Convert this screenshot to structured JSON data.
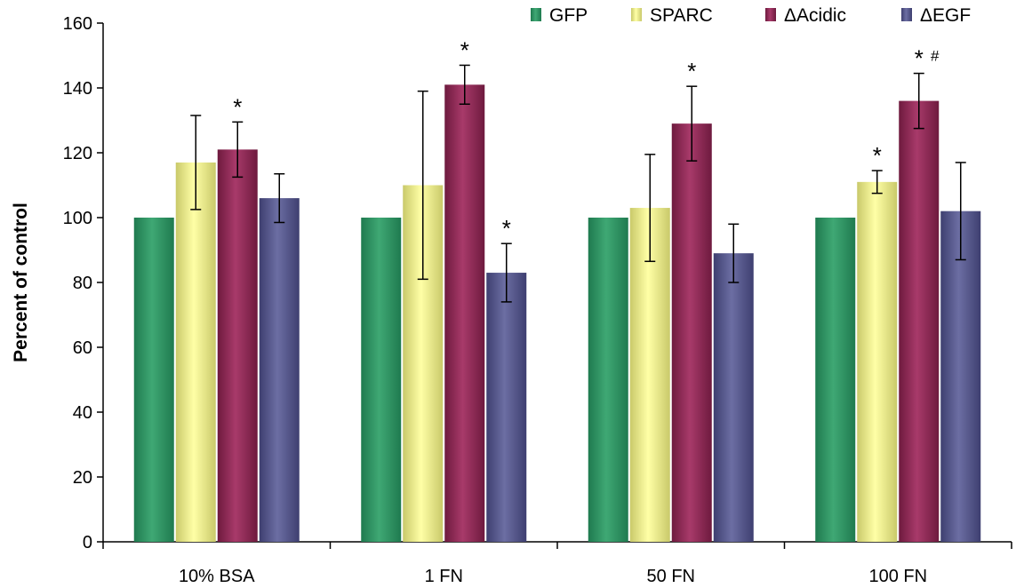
{
  "chart_data": {
    "type": "bar",
    "ylabel": "Percent of control",
    "ylim": [
      0,
      160
    ],
    "yticks": [
      0,
      20,
      40,
      60,
      80,
      100,
      120,
      140,
      160
    ],
    "categories": [
      "10% BSA",
      "1 FN",
      "50 FN",
      "100 FN"
    ],
    "legend_position": "top-right",
    "series": [
      {
        "name": "GFP",
        "color_top": "#1f7a4f",
        "color_mid": "#3fa874",
        "values": [
          100,
          100,
          100,
          100
        ],
        "errors": [
          null,
          null,
          null,
          null
        ],
        "annotations": [
          "",
          "",
          "",
          ""
        ]
      },
      {
        "name": "SPARC",
        "color_top": "#c9c96a",
        "color_mid": "#ffffa6",
        "values": [
          117,
          110,
          103,
          111
        ],
        "errors": [
          14.5,
          29,
          16.5,
          3.5
        ],
        "annotations": [
          "",
          "",
          "",
          "*"
        ]
      },
      {
        "name": "ΔAcidic",
        "color_top": "#6e1a3e",
        "color_mid": "#a83a6a",
        "values": [
          121,
          141,
          129,
          136
        ],
        "errors": [
          8.5,
          6,
          11.5,
          8.5
        ],
        "annotations": [
          "*",
          "*",
          "*",
          "*"
        ]
      },
      {
        "name": "ΔEGF",
        "color_top": "#3e3f70",
        "color_mid": "#6c6ea3",
        "values": [
          106,
          83,
          89,
          102
        ],
        "errors": [
          7.5,
          9,
          9,
          15
        ],
        "annotations": [
          "",
          "*",
          "",
          ""
        ]
      }
    ],
    "extra_annotations": [
      {
        "category_index": 3,
        "series_index": 2,
        "text": "#"
      }
    ]
  }
}
